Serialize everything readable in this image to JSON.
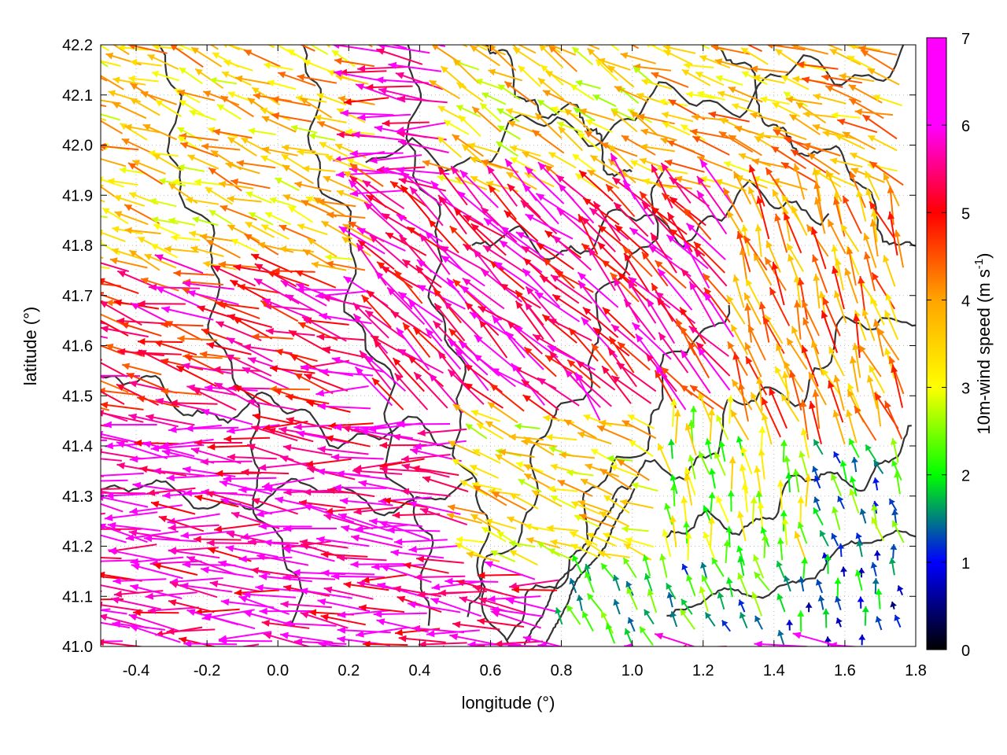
{
  "chart_data": {
    "type": "vector-field",
    "xlabel": "longitude (°)",
    "ylabel": "latitude (°)",
    "xlim": [
      -0.5,
      1.8
    ],
    "ylim": [
      41.0,
      42.2
    ],
    "x_ticks": [
      "-0.4",
      "-0.2",
      "0.0",
      "0.2",
      "0.4",
      "0.6",
      "0.8",
      "1.0",
      "1.2",
      "1.4",
      "1.6",
      "1.8"
    ],
    "y_ticks": [
      "41.0",
      "41.1",
      "41.2",
      "41.3",
      "41.4",
      "41.5",
      "41.6",
      "41.7",
      "41.8",
      "41.9",
      "42.0",
      "42.1",
      "42.2"
    ],
    "grid": true,
    "colorbar": {
      "label_main": "10m-wind speed (m s",
      "label_sup": "-1",
      "label_end": ")",
      "range": [
        0,
        7
      ],
      "ticks": [
        "0",
        "1",
        "2",
        "3",
        "4",
        "5",
        "6",
        "7"
      ],
      "colors": [
        "#000000",
        "#0000ff",
        "#00ff00",
        "#ffff00",
        "#ffa500",
        "#ff0000",
        "#ff00ff"
      ]
    },
    "wind_regions": [
      {
        "lon": [
          -0.5,
          0.55
        ],
        "lat": [
          41.0,
          41.45
        ],
        "speed": 6.8,
        "direction_deg": 175
      },
      {
        "lon": [
          -0.5,
          0.2
        ],
        "lat": [
          41.45,
          41.75
        ],
        "speed": 6.0,
        "direction_deg": 165
      },
      {
        "lon": [
          -0.5,
          0.3
        ],
        "lat": [
          41.75,
          42.2
        ],
        "speed": 4.2,
        "direction_deg": 160
      },
      {
        "lon": [
          0.3,
          0.9
        ],
        "lat": [
          41.45,
          41.9
        ],
        "speed": 6.5,
        "direction_deg": 140
      },
      {
        "lon": [
          0.9,
          1.3
        ],
        "lat": [
          41.45,
          41.9
        ],
        "speed": 6.2,
        "direction_deg": 130
      },
      {
        "lon": [
          0.5,
          1.1
        ],
        "lat": [
          41.9,
          42.2
        ],
        "speed": 4.0,
        "direction_deg": 150
      },
      {
        "lon": [
          1.1,
          1.8
        ],
        "lat": [
          41.9,
          42.2
        ],
        "speed": 4.4,
        "direction_deg": 160
      },
      {
        "lon": [
          1.3,
          1.8
        ],
        "lat": [
          41.4,
          41.9
        ],
        "speed": 4.8,
        "direction_deg": 110
      },
      {
        "lon": [
          0.55,
          1.1
        ],
        "lat": [
          41.15,
          41.45
        ],
        "speed": 4.0,
        "direction_deg": 160
      },
      {
        "lon": [
          1.1,
          1.5
        ],
        "lat": [
          41.15,
          41.45
        ],
        "speed": 3.2,
        "direction_deg": 100
      },
      {
        "lon": [
          1.5,
          1.8
        ],
        "lat": [
          41.2,
          41.45
        ],
        "speed": 2.2,
        "direction_deg": 110
      },
      {
        "lon": [
          0.8,
          1.4
        ],
        "lat": [
          41.0,
          41.15
        ],
        "speed": 2.2,
        "direction_deg": 115
      },
      {
        "lon": [
          1.4,
          1.8
        ],
        "lat": [
          41.0,
          41.2
        ],
        "speed": 1.5,
        "direction_deg": 100
      }
    ]
  }
}
